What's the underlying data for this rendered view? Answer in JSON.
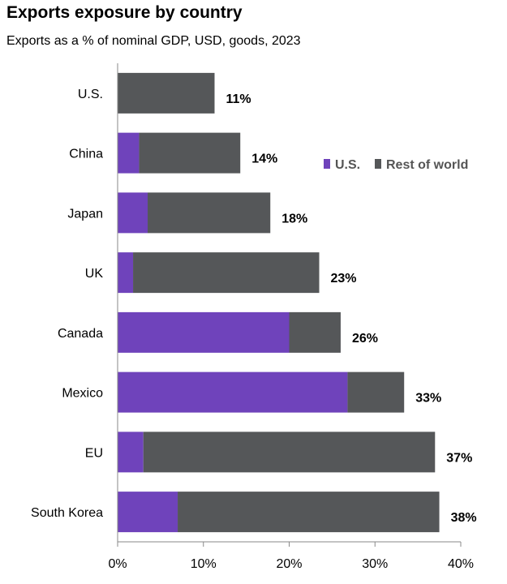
{
  "title": "Exports exposure by country",
  "subtitle": "Exports as a % of nominal GDP, USD, goods, 2023",
  "colors": {
    "us": "#6F43BB",
    "rest": "#555759",
    "axis": "#888888",
    "text": "#000000",
    "legend_text": "#555555"
  },
  "chart_data": {
    "type": "bar",
    "orientation": "horizontal",
    "stacked": true,
    "title": "Exports exposure by country",
    "subtitle": "Exports as a % of nominal GDP, USD, goods, 2023",
    "categories": [
      "U.S.",
      "China",
      "Japan",
      "UK",
      "Canada",
      "Mexico",
      "EU",
      "South Korea"
    ],
    "series": [
      {
        "name": "U.S.",
        "values": [
          0,
          2.5,
          3.5,
          1.8,
          20,
          26.8,
          3,
          7
        ]
      },
      {
        "name": "Rest of world",
        "values": [
          11.3,
          11.8,
          14.3,
          21.7,
          6,
          6.6,
          34,
          30.5
        ]
      }
    ],
    "totals_labels": [
      "11%",
      "14%",
      "18%",
      "23%",
      "26%",
      "33%",
      "37%",
      "38%"
    ],
    "xlim": [
      0,
      40
    ],
    "xticks": [
      0,
      10,
      20,
      30,
      40
    ],
    "xtick_labels": [
      "0%",
      "10%",
      "20%",
      "30%",
      "40%"
    ],
    "legend": {
      "entries": [
        "U.S.",
        "Rest of world"
      ],
      "placement": "top-right"
    },
    "grid": false
  }
}
